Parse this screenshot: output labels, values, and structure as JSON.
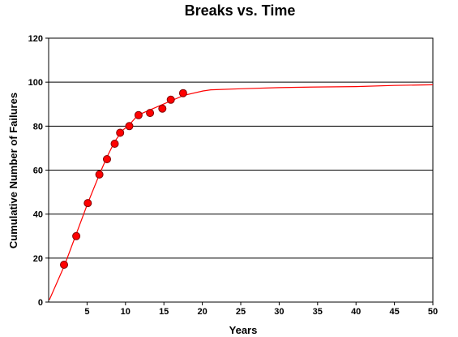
{
  "chart_data": {
    "type": "scatter",
    "title": "Breaks vs. Time",
    "xlabel": "Years",
    "ylabel": "Cumulative Number of Failures",
    "xlim": [
      0,
      50
    ],
    "ylim": [
      0,
      120
    ],
    "xticks": [
      5,
      10,
      15,
      20,
      25,
      30,
      35,
      40,
      45,
      50
    ],
    "yticks": [
      0,
      20,
      40,
      60,
      80,
      100,
      120
    ],
    "grid": "horizontal",
    "colors": {
      "points": "#ff0000",
      "point_outline": "#800000",
      "fit_line": "#ff0000",
      "grid": "#000000"
    },
    "series": [
      {
        "type": "scatter",
        "x": [
          2.0,
          3.6,
          5.1,
          6.6,
          7.6,
          8.6,
          9.3,
          10.5,
          11.7,
          13.2,
          14.8,
          15.9,
          17.5
        ],
        "y": [
          17,
          30,
          45,
          58,
          65,
          72,
          77,
          80,
          85,
          86,
          88,
          92,
          95
        ]
      },
      {
        "type": "line",
        "x": [
          0.1,
          2.1,
          3.6,
          5.1,
          6.6,
          7.6,
          8.6,
          9.6,
          10.6,
          11.6,
          13.6,
          15.6,
          17.6,
          20.1,
          21.1,
          25.0,
          30.0,
          35.0,
          40.0,
          45.0,
          50.0
        ],
        "y": [
          1,
          17,
          31,
          45,
          58,
          66,
          73,
          78,
          81,
          85,
          88,
          91,
          94,
          96,
          96.5,
          97,
          97.5,
          97.8,
          98,
          98.5,
          98.8
        ]
      }
    ]
  }
}
